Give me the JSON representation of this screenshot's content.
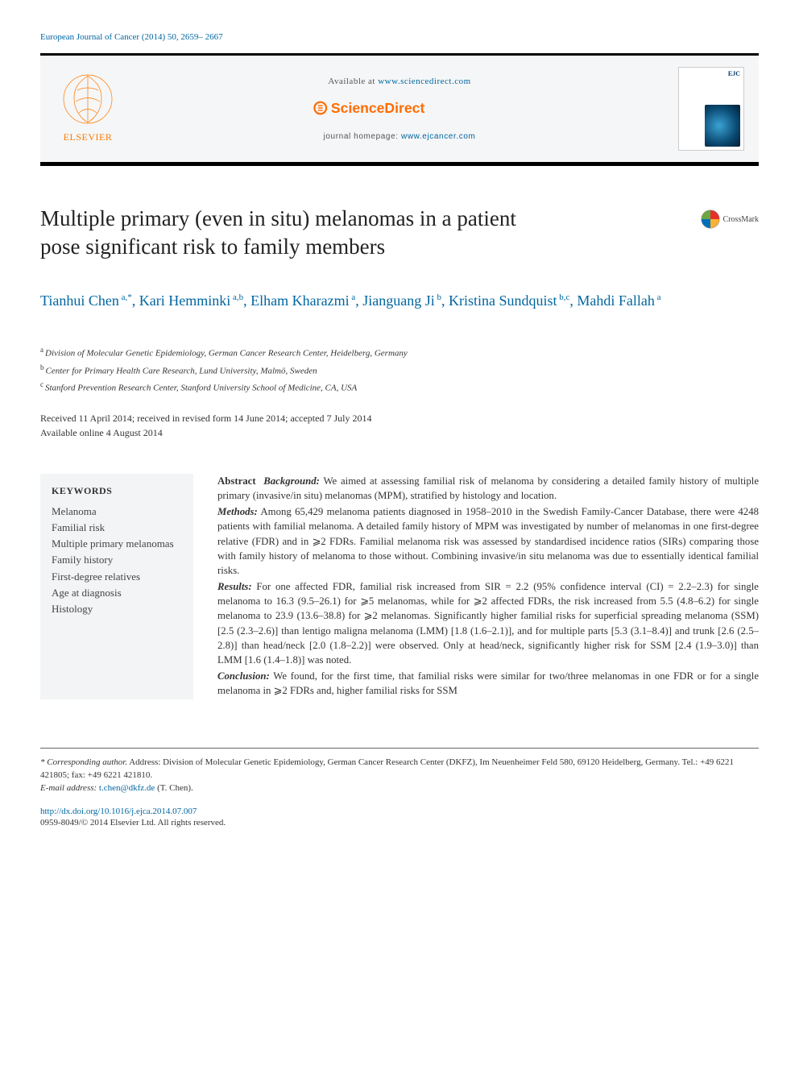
{
  "running_head": "European Journal of Cancer (2014) 50, 2659– 2667",
  "header": {
    "available_text": "Available at ",
    "available_url_text": "www.sciencedirect.com",
    "sciencedirect_label": "ScienceDirect",
    "homepage_prefix": "journal homepage: ",
    "homepage_url_text": "www.ejcancer.com",
    "elsevier_label": "ELSEVIER",
    "journal_abbrev": "EJC"
  },
  "crossmark_label": "CrossMark",
  "title": "Multiple primary (even in situ) melanomas in a patient pose significant risk to family members",
  "authors_html": "Tianhui Chen<sup>a,*</sup>, Kari Hemminki<sup>a,b</sup>, Elham Kharazmi<sup>a</sup>, Jianguang Ji<sup>b</sup>, Kristina Sundquist<sup>b,c</sup>, Mahdi Fallah<sup>a</sup>",
  "authors": [
    {
      "name": "Tianhui Chen",
      "aff": "a,*"
    },
    {
      "name": "Kari Hemminki",
      "aff": "a,b"
    },
    {
      "name": "Elham Kharazmi",
      "aff": "a"
    },
    {
      "name": "Jianguang Ji",
      "aff": "b"
    },
    {
      "name": "Kristina Sundquist",
      "aff": "b,c"
    },
    {
      "name": "Mahdi Fallah",
      "aff": "a"
    }
  ],
  "affiliations": [
    {
      "sup": "a",
      "text": "Division of Molecular Genetic Epidemiology, German Cancer Research Center, Heidelberg, Germany"
    },
    {
      "sup": "b",
      "text": "Center for Primary Health Care Research, Lund University, Malmö, Sweden"
    },
    {
      "sup": "c",
      "text": "Stanford Prevention Research Center, Stanford University School of Medicine, CA, USA"
    }
  ],
  "dates": {
    "line1": "Received 11 April 2014; received in revised form 14 June 2014; accepted 7 July 2014",
    "line2": "Available online 4 August 2014"
  },
  "keywords_heading": "KEYWORDS",
  "keywords": [
    "Melanoma",
    "Familial risk",
    "Multiple primary melanomas",
    "Family history",
    "First-degree relatives",
    "Age at diagnosis",
    "Histology"
  ],
  "abstract": {
    "lead": "Abstract",
    "sections": [
      {
        "label": "Background:",
        "text": "We aimed at assessing familial risk of melanoma by considering a detailed family history of multiple primary (invasive/in situ) melanomas (MPM), stratified by histology and location."
      },
      {
        "label": "Methods:",
        "text": "Among 65,429 melanoma patients diagnosed in 1958–2010 in the Swedish Family-Cancer Database, there were 4248 patients with familial melanoma. A detailed family history of MPM was investigated by number of melanomas in one first-degree relative (FDR) and in ⩾2 FDRs. Familial melanoma risk was assessed by standardised incidence ratios (SIRs) comparing those with family history of melanoma to those without. Combining invasive/in situ melanoma was due to essentially identical familial risks."
      },
      {
        "label": "Results:",
        "text": "For one affected FDR, familial risk increased from SIR = 2.2 (95% confidence interval (CI) = 2.2–2.3) for single melanoma to 16.3 (9.5–26.1) for ⩾5 melanomas, while for ⩾2 affected FDRs, the risk increased from 5.5 (4.8–6.2) for single melanoma to 23.9 (13.6–38.8) for ⩾2 melanomas. Significantly higher familial risks for superficial spreading melanoma (SSM) [2.5 (2.3–2.6)] than lentigo maligna melanoma (LMM) [1.8 (1.6–2.1)], and for multiple parts [5.3 (3.1–8.4)] and trunk [2.6 (2.5–2.8)] than head/neck [2.0 (1.8–2.2)] were observed. Only at head/neck, significantly higher risk for SSM [2.4 (1.9–3.0)] than LMM [1.6 (1.4–1.8)] was noted."
      },
      {
        "label": "Conclusion:",
        "text": "We found, for the first time, that familial risks were similar for two/three melanomas in one FDR or for a single melanoma in ⩾2 FDRs and, higher familial risks for SSM"
      }
    ]
  },
  "footnotes": {
    "corresponding_label": "* Corresponding author.",
    "corresponding_text": "Address: Division of Molecular Genetic Epidemiology, German Cancer Research Center (DKFZ), Im Neuenheimer Feld 580, 69120 Heidelberg, Germany. Tel.: +49 6221 421805; fax: +49 6221 421810.",
    "email_label": "E-mail address:",
    "email": "t.chen@dkfz.de",
    "email_author": "(T. Chen)."
  },
  "doi": {
    "url_text": "http://dx.doi.org/10.1016/j.ejca.2014.07.007",
    "issn_copyright": "0959-8049/© 2014 Elsevier Ltd. All rights reserved."
  },
  "colors": {
    "link": "#0066a0",
    "sd_orange": "#ff6c00",
    "elsevier_orange": "#ff7a00",
    "kw_bg": "#f2f4f5",
    "header_bg": "#f5f6f7",
    "crossmark_red": "#e4322b",
    "crossmark_blue": "#0070ba",
    "crossmark_yellow": "#f9b233",
    "crossmark_green": "#6aa642"
  }
}
